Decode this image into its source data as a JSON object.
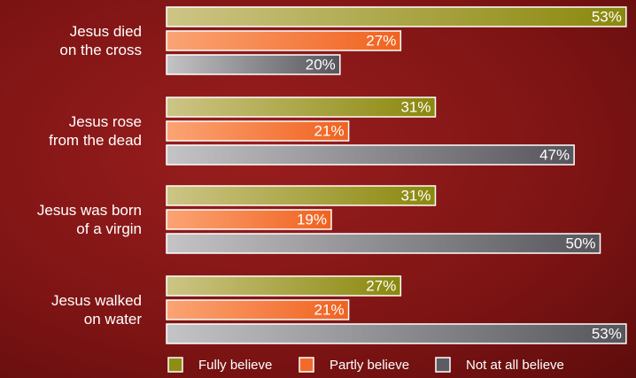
{
  "chart_data": {
    "type": "bar",
    "orientation": "horizontal",
    "categories": [
      "Jesus died\non the cross",
      "Jesus rose\nfrom the dead",
      "Jesus was born\nof a virgin",
      "Jesus walked\non water"
    ],
    "series": [
      {
        "name": "Fully believe",
        "color": "#8f8c16",
        "values": [
          53,
          31,
          31,
          27
        ],
        "value_labels": [
          "53%",
          "31%",
          "31%",
          "27%"
        ]
      },
      {
        "name": "Partly believe",
        "color": "#f26b2c",
        "values": [
          27,
          21,
          19,
          21
        ],
        "value_labels": [
          "27%",
          "21%",
          "19%",
          "21%"
        ]
      },
      {
        "name": "Not at all believe",
        "color": "#5c5c62",
        "values": [
          20,
          47,
          50,
          53
        ],
        "value_labels": [
          "20%",
          "47%",
          "50%",
          "53%"
        ]
      }
    ],
    "legend": "bottom"
  }
}
